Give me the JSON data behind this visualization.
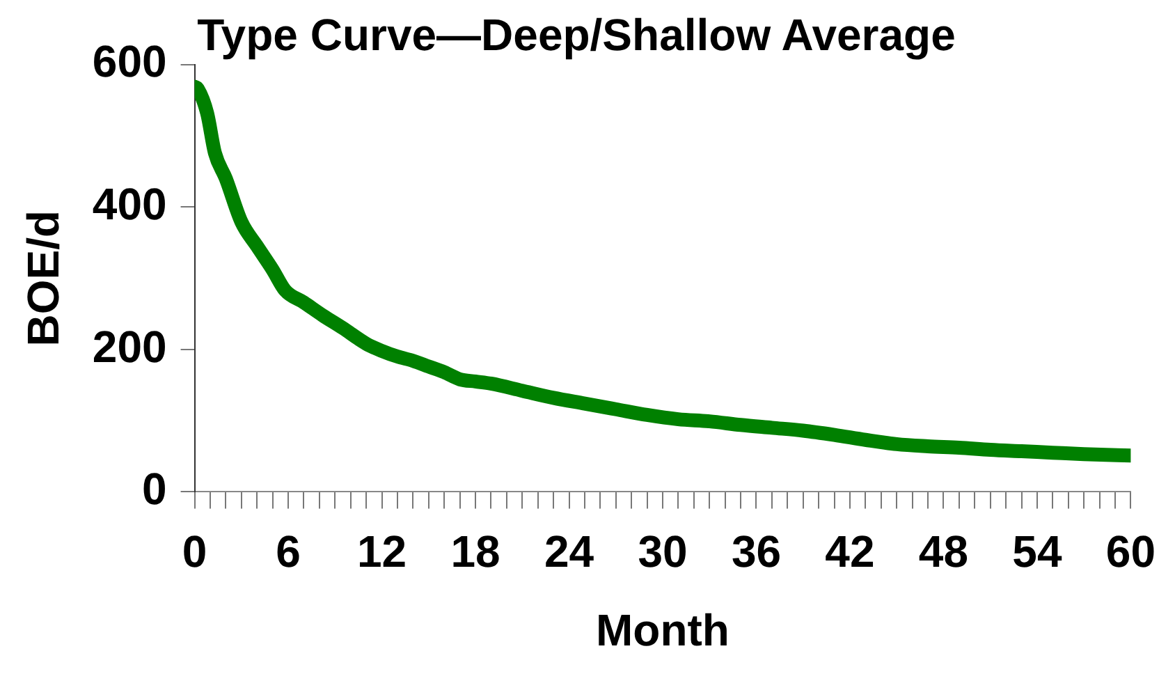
{
  "chart_data": {
    "type": "line",
    "title": "Type Curve—Deep/Shallow Average",
    "xlabel": "Month",
    "ylabel": "BOE/d",
    "x": [
      0,
      0.2,
      0.8,
      1.3,
      2,
      3,
      4,
      5,
      5.8,
      7,
      8.2,
      9.5,
      11,
      12,
      13,
      14,
      15,
      16,
      17,
      18,
      19,
      21,
      23,
      25,
      27,
      29,
      31,
      33,
      35,
      37,
      39,
      41,
      43,
      45,
      47,
      49,
      51,
      53,
      55,
      57,
      60
    ],
    "series": [
      {
        "color": "#008000",
        "values": [
          569,
          566,
          532,
          476,
          440,
          379,
          345,
          312,
          283,
          266,
          248,
          230,
          208,
          198,
          190,
          184,
          176,
          168,
          158,
          155,
          152,
          142,
          132,
          124,
          116,
          108,
          102,
          99,
          94,
          90,
          86,
          80,
          73,
          67,
          64,
          62,
          59,
          57,
          55,
          53,
          51
        ]
      }
    ],
    "xlim": [
      0,
      60
    ],
    "ylim": [
      0,
      600
    ],
    "xticks": [
      0,
      {
        "value": 1,
        "label": null
      },
      {
        "value": 2,
        "label": null
      },
      {
        "value": 3,
        "label": null
      },
      {
        "value": 4,
        "label": null
      },
      {
        "value": 5,
        "label": null
      },
      6,
      {
        "value": 7,
        "label": null
      },
      {
        "value": 8,
        "label": null
      },
      {
        "value": 9,
        "label": null
      },
      {
        "value": 10,
        "label": null
      },
      {
        "value": 11,
        "label": null
      },
      12,
      {
        "value": 13,
        "label": null
      },
      {
        "value": 14,
        "label": null
      },
      {
        "value": 15,
        "label": null
      },
      {
        "value": 16,
        "label": null
      },
      {
        "value": 17,
        "label": null
      },
      18,
      {
        "value": 19,
        "label": null
      },
      {
        "value": 20,
        "label": null
      },
      {
        "value": 21,
        "label": null
      },
      {
        "value": 22,
        "label": null
      },
      {
        "value": 23,
        "label": null
      },
      24,
      {
        "value": 25,
        "label": null
      },
      {
        "value": 26,
        "label": null
      },
      {
        "value": 27,
        "label": null
      },
      {
        "value": 28,
        "label": null
      },
      {
        "value": 29,
        "label": null
      },
      30,
      {
        "value": 31,
        "label": null
      },
      {
        "value": 32,
        "label": null
      },
      {
        "value": 33,
        "label": null
      },
      {
        "value": 34,
        "label": null
      },
      {
        "value": 35,
        "label": null
      },
      36,
      {
        "value": 37,
        "label": null
      },
      {
        "value": 38,
        "label": null
      },
      {
        "value": 39,
        "label": null
      },
      {
        "value": 40,
        "label": null
      },
      {
        "value": 41,
        "label": null
      },
      42,
      {
        "value": 43,
        "label": null
      },
      {
        "value": 44,
        "label": null
      },
      {
        "value": 45,
        "label": null
      },
      {
        "value": 46,
        "label": null
      },
      {
        "value": 47,
        "label": null
      },
      48,
      {
        "value": 49,
        "label": null
      },
      {
        "value": 50,
        "label": null
      },
      {
        "value": 51,
        "label": null
      },
      {
        "value": 52,
        "label": null
      },
      {
        "value": 53,
        "label": null
      },
      54,
      {
        "value": 55,
        "label": null
      },
      {
        "value": 56,
        "label": null
      },
      {
        "value": 57,
        "label": null
      },
      {
        "value": 58,
        "label": null
      },
      {
        "value": 59,
        "label": null
      },
      60
    ],
    "yticks": [
      0,
      200,
      400,
      600
    ],
    "grid": false,
    "legend": false,
    "marker": "none",
    "line_style": "solid"
  }
}
